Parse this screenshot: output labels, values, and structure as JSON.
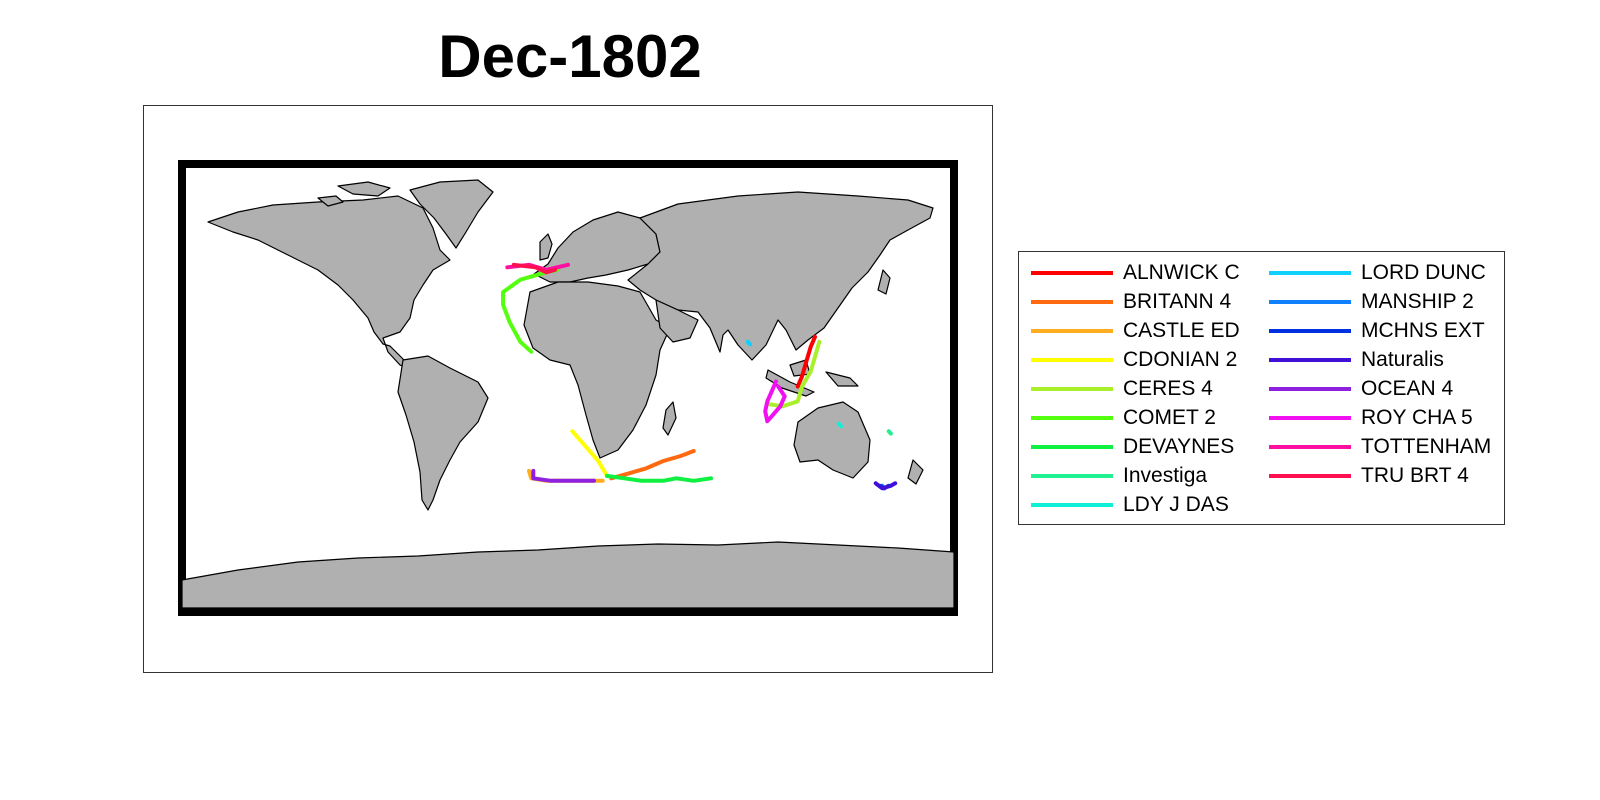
{
  "title": "Dec-1802",
  "map": {
    "land_color": "#b0b0b0",
    "ocean_color": "#ffffff",
    "frame_color": "#000000"
  },
  "legend": {
    "placement": "right",
    "columns": 2,
    "items": [
      {
        "label": "ALNWICK C",
        "color": "#ff0000"
      },
      {
        "label": "BRITANN 4",
        "color": "#ff6a10"
      },
      {
        "label": "CASTLE ED",
        "color": "#ffae20"
      },
      {
        "label": "CDONIAN 2",
        "color": "#ffff00"
      },
      {
        "label": "CERES 4",
        "color": "#aaf02a"
      },
      {
        "label": "COMET 2",
        "color": "#55ff10"
      },
      {
        "label": "DEVAYNES",
        "color": "#10f040"
      },
      {
        "label": "Investiga",
        "color": "#20f090"
      },
      {
        "label": "LDY J DAS",
        "color": "#10f0d8"
      },
      {
        "label": "LORD DUNC",
        "color": "#10d0ff"
      },
      {
        "label": "MANSHIP 2",
        "color": "#1080ff"
      },
      {
        "label": "MCHNS EXT",
        "color": "#0030e0"
      },
      {
        "label": "Naturalis",
        "color": "#4010d8"
      },
      {
        "label": "OCEAN 4",
        "color": "#9020e0"
      },
      {
        "label": "ROY CHA 5",
        "color": "#f010f0"
      },
      {
        "label": "TOTTENHAM",
        "color": "#ff10a0"
      },
      {
        "label": "TRU BRT 4",
        "color": "#ff1050"
      }
    ]
  },
  "tracks": [
    {
      "name": "ALNWICK C",
      "color": "#ff0000",
      "lonlat": [
        [
          114,
          22
        ],
        [
          112,
          18
        ],
        [
          110,
          12
        ],
        [
          108,
          6
        ],
        [
          106,
          2
        ]
      ]
    },
    {
      "name": "BRITANN 4",
      "color": "#ff6a10",
      "lonlat": [
        [
          20,
          -35
        ],
        [
          28,
          -33
        ],
        [
          36,
          -31
        ],
        [
          44,
          -28
        ],
        [
          52,
          -26
        ],
        [
          58,
          -24
        ]
      ]
    },
    {
      "name": "CASTLE ED",
      "color": "#ffae20",
      "lonlat": [
        [
          -18,
          -32
        ],
        [
          -17,
          -35
        ],
        [
          -10,
          -36
        ],
        [
          0,
          -36
        ],
        [
          10,
          -36
        ],
        [
          16,
          -36
        ]
      ]
    },
    {
      "name": "CDONIAN 2",
      "color": "#ffff00",
      "lonlat": [
        [
          2,
          -16
        ],
        [
          8,
          -22
        ],
        [
          14,
          -28
        ],
        [
          18,
          -34
        ]
      ]
    },
    {
      "name": "CERES 4",
      "color": "#aaf02a",
      "lonlat": [
        [
          116,
          20
        ],
        [
          114,
          14
        ],
        [
          112,
          8
        ],
        [
          108,
          2
        ],
        [
          106,
          -4
        ],
        [
          99,
          -6
        ],
        [
          92,
          -5
        ]
      ]
    },
    {
      "name": "COMET 2",
      "color": "#55ff10",
      "lonlat": [
        [
          -5,
          49
        ],
        [
          -10,
          48
        ],
        [
          -22,
          45
        ],
        [
          -30,
          40
        ],
        [
          -30,
          35
        ],
        [
          -27,
          28
        ],
        [
          -22,
          20
        ],
        [
          -17,
          16
        ]
      ]
    },
    {
      "name": "DEVAYNES",
      "color": "#10f040",
      "lonlat": [
        [
          18,
          -34
        ],
        [
          26,
          -35
        ],
        [
          34,
          -36
        ],
        [
          44,
          -36
        ],
        [
          50,
          -35
        ],
        [
          58,
          -36
        ],
        [
          66,
          -35
        ]
      ]
    },
    {
      "name": "Investiga",
      "color": "#20f090",
      "lonlat": [
        [
          148,
          -16
        ],
        [
          149,
          -17
        ]
      ]
    },
    {
      "name": "LDY J DAS",
      "color": "#10f0d8",
      "lonlat": [
        [
          125,
          -13
        ],
        [
          126,
          -14
        ]
      ]
    },
    {
      "name": "LORD DUNC",
      "color": "#10d0ff",
      "lonlat": [
        [
          83,
          20
        ],
        [
          84,
          19
        ]
      ]
    },
    {
      "name": "MANSHIP 2",
      "color": "#1080ff",
      "lonlat": [
        [
          145,
          -38
        ],
        [
          146,
          -39
        ]
      ]
    },
    {
      "name": "MCHNS EXT",
      "color": "#0030e0",
      "lonlat": [
        [
          144,
          -38
        ],
        [
          146,
          -39
        ],
        [
          148,
          -38
        ]
      ]
    },
    {
      "name": "Naturalis",
      "color": "#4010d8",
      "lonlat": [
        [
          142,
          -37
        ],
        [
          145,
          -39
        ],
        [
          149,
          -38
        ],
        [
          151,
          -37
        ]
      ]
    },
    {
      "name": "OCEAN 4",
      "color": "#9020e0",
      "lonlat": [
        [
          -16,
          -32
        ],
        [
          -16,
          -35
        ],
        [
          -8,
          -36
        ],
        [
          4,
          -36
        ],
        [
          12,
          -36
        ]
      ]
    },
    {
      "name": "ROY CHA 5",
      "color": "#f010f0",
      "lonlat": [
        [
          96,
          4
        ],
        [
          94,
          0
        ],
        [
          92,
          -4
        ],
        [
          91,
          -8
        ],
        [
          92,
          -12
        ],
        [
          94,
          -10
        ],
        [
          98,
          -6
        ],
        [
          100,
          -2
        ],
        [
          97,
          2
        ]
      ]
    },
    {
      "name": "TOTTENHAM",
      "color": "#ff10a0",
      "lonlat": [
        [
          -28,
          50
        ],
        [
          -18,
          51
        ],
        [
          -10,
          49
        ],
        [
          -5,
          50
        ],
        [
          0,
          51
        ]
      ]
    },
    {
      "name": "TRU BRT 4",
      "color": "#ff1050",
      "lonlat": [
        [
          -25,
          51
        ],
        [
          -15,
          50
        ],
        [
          -10,
          48
        ],
        [
          -6,
          49
        ]
      ]
    }
  ]
}
